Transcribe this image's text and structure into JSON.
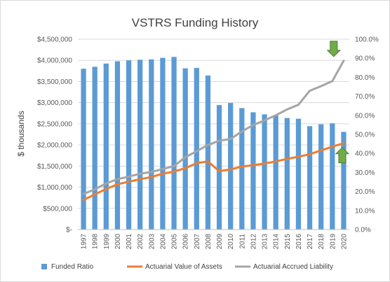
{
  "chart_data": {
    "type": "bar+line",
    "title": "VSTRS Funding History",
    "ylabel": "$ thousands",
    "y2label": "",
    "categories": [
      "1997",
      "1998",
      "1999",
      "2000",
      "2001",
      "2002",
      "2003",
      "2004",
      "2005",
      "2006",
      "2007",
      "2008",
      "2009",
      "2010",
      "2011",
      "2012",
      "2013",
      "2014",
      "2015",
      "2016",
      "2017",
      "2018",
      "2019",
      "2020"
    ],
    "y_left": {
      "min": 0,
      "max": 4500000,
      "step": 500000,
      "tick_labels": [
        "$-",
        "$500,000",
        "$1,000,000",
        "$1,500,000",
        "$2,000,000",
        "$2,500,000",
        "$3,000,000",
        "$3,500,000",
        "$4,000,000",
        "$4,500,000"
      ]
    },
    "y_right": {
      "min": 0,
      "max": 100,
      "step": 10,
      "tick_labels": [
        "0.0%",
        "10.0%",
        "20.0%",
        "30.0%",
        "40.0%",
        "50.0%",
        "60.0%",
        "70.0%",
        "80.0%",
        "90.0%",
        "100.0%"
      ]
    },
    "series": [
      {
        "name": "Funded Ratio",
        "kind": "bar",
        "axis": "right",
        "color": "#5b9bd5",
        "values": [
          84.5,
          85.5,
          87.2,
          88.4,
          88.9,
          89.2,
          89.4,
          90.2,
          90.7,
          84.7,
          84.9,
          80.9,
          65.4,
          66.5,
          63.8,
          61.6,
          60.5,
          59.9,
          58.6,
          58.2,
          54.3,
          55.3,
          55.8,
          51.3
        ]
      },
      {
        "name": "Actuarial Value of Assets",
        "kind": "line",
        "axis": "left",
        "color": "#ed7d31",
        "values": [
          700000,
          830000,
          960000,
          1070000,
          1130000,
          1190000,
          1240000,
          1320000,
          1370000,
          1450000,
          1570000,
          1610000,
          1380000,
          1420000,
          1490000,
          1520000,
          1560000,
          1610000,
          1670000,
          1720000,
          1780000,
          1870000,
          1960000,
          2040000
        ]
      },
      {
        "name": "Actuarial Accrued Liability",
        "kind": "line",
        "axis": "left",
        "color": "#a5a5a5",
        "values": [
          840000,
          950000,
          1090000,
          1190000,
          1250000,
          1320000,
          1360000,
          1430000,
          1500000,
          1710000,
          1850000,
          2000000,
          2100000,
          2140000,
          2320000,
          2470000,
          2580000,
          2700000,
          2840000,
          2950000,
          3280000,
          3390000,
          3510000,
          3990000
        ]
      }
    ],
    "annotations": [
      {
        "type": "arrow",
        "direction": "down",
        "color": "#70ad47",
        "at_category": "2019",
        "description": "green arrow pointing down toward liability line end"
      },
      {
        "type": "arrow",
        "direction": "up",
        "color": "#70ad47",
        "at_category": "2020",
        "description": "green arrow pointing up toward assets line end"
      }
    ],
    "legend_position": "bottom",
    "grid": {
      "horizontal": true,
      "vertical": false
    }
  }
}
